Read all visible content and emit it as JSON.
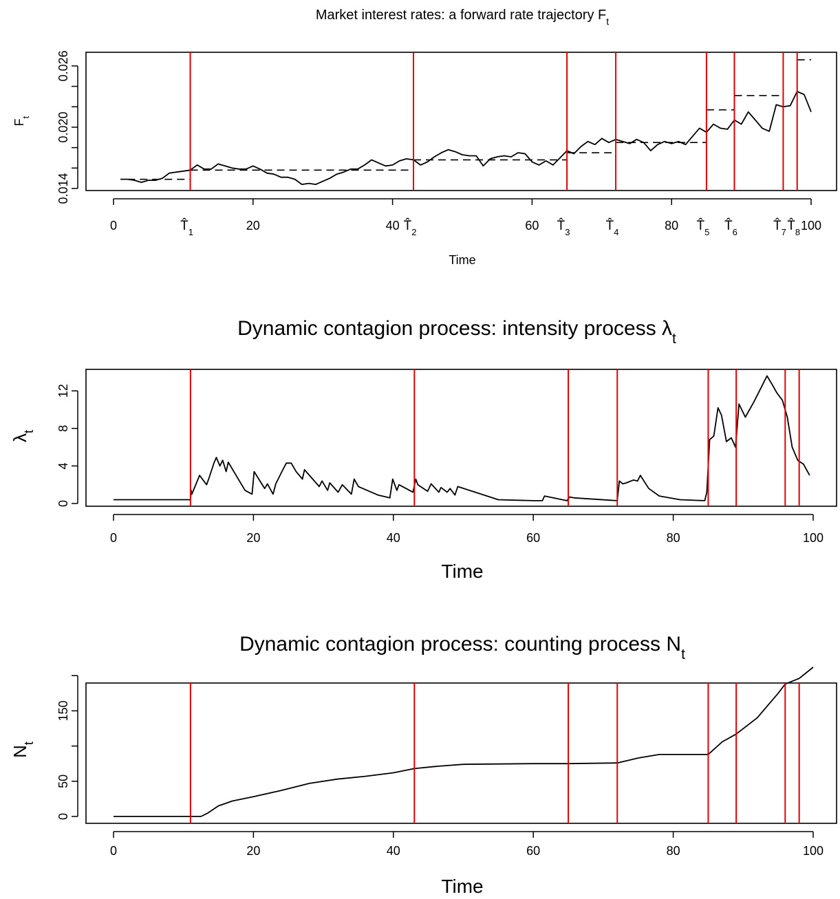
{
  "chart_data": [
    {
      "type": "line",
      "title": "Market interest rates: a forward rate trajectory F",
      "title_subscript": "t",
      "xlabel": "Time",
      "ylabel": "F",
      "ylabel_subscript": "t",
      "xlim": [
        0,
        100
      ],
      "ylim": [
        0.014,
        0.027
      ],
      "xticks": [
        0,
        20,
        40,
        60,
        80,
        100
      ],
      "xtick_labels": [
        "0",
        "20",
        "40",
        "60",
        "80",
        "100"
      ],
      "yticks": [
        0.014,
        0.016,
        0.018,
        0.02,
        0.022,
        0.024,
        0.026
      ],
      "ytick_labels": [
        "0.014",
        "",
        "",
        "0.020",
        "",
        "",
        "0.026"
      ],
      "changepoints": [
        11,
        43,
        65,
        72,
        85,
        89,
        96,
        98
      ],
      "changepoint_labels": [
        "T̂",
        "T̂",
        "T̂",
        "T̂",
        "T̂",
        "T̂",
        "T̂",
        "T̂"
      ],
      "changepoint_subscripts": [
        "1",
        "2",
        "3",
        "4",
        "5",
        "6",
        "7",
        "8"
      ],
      "series": [
        {
          "style": "solid",
          "x": [
            1,
            2,
            3,
            4,
            5,
            6,
            7,
            8,
            9,
            10,
            11,
            12,
            13,
            14,
            15,
            16,
            17,
            18,
            19,
            20,
            21,
            22,
            23,
            24,
            25,
            26,
            27,
            28,
            29,
            30,
            31,
            32,
            33,
            34,
            35,
            36,
            37,
            38,
            39,
            40,
            41,
            42,
            43,
            44,
            45,
            46,
            47,
            48,
            49,
            50,
            51,
            52,
            53,
            54,
            55,
            56,
            57,
            58,
            59,
            60,
            61,
            62,
            63,
            64,
            65,
            66,
            67,
            68,
            69,
            70,
            71,
            72,
            73,
            74,
            75,
            76,
            77,
            78,
            79,
            80,
            81,
            82,
            83,
            84,
            85,
            86,
            87,
            88,
            89,
            90,
            91,
            92,
            93,
            94,
            95,
            96,
            97,
            98,
            99,
            100
          ],
          "y": [
            0.0149,
            0.0149,
            0.0148,
            0.0146,
            0.0148,
            0.0148,
            0.015,
            0.0155,
            0.0156,
            0.0157,
            0.0158,
            0.0163,
            0.0159,
            0.0159,
            0.0164,
            0.0162,
            0.016,
            0.0159,
            0.0159,
            0.0162,
            0.0159,
            0.0155,
            0.0154,
            0.0151,
            0.0151,
            0.0149,
            0.0144,
            0.0145,
            0.0144,
            0.0147,
            0.015,
            0.0154,
            0.0156,
            0.0159,
            0.0159,
            0.0163,
            0.0168,
            0.0165,
            0.0162,
            0.0163,
            0.0167,
            0.0169,
            0.0168,
            0.0163,
            0.0166,
            0.0171,
            0.0175,
            0.0178,
            0.0176,
            0.0173,
            0.0172,
            0.0172,
            0.0162,
            0.0169,
            0.0171,
            0.0172,
            0.0171,
            0.0175,
            0.0174,
            0.0166,
            0.0163,
            0.0167,
            0.0163,
            0.017,
            0.0177,
            0.0174,
            0.0181,
            0.0186,
            0.0183,
            0.0189,
            0.0185,
            0.0188,
            0.0186,
            0.0184,
            0.0188,
            0.0185,
            0.0177,
            0.0183,
            0.0186,
            0.0184,
            0.0186,
            0.0183,
            0.0191,
            0.0199,
            0.0195,
            0.0203,
            0.0199,
            0.0198,
            0.0207,
            0.0203,
            0.0215,
            0.0207,
            0.0199,
            0.0196,
            0.0222,
            0.022,
            0.0221,
            0.0235,
            0.0232,
            0.0215
          ]
        },
        {
          "style": "dashed",
          "segments": [
            {
              "x": [
                2,
                11
              ],
              "y": 0.0149
            },
            {
              "x": [
                11,
                43
              ],
              "y": 0.0158
            },
            {
              "x": [
                43,
                65
              ],
              "y": 0.0168
            },
            {
              "x": [
                65,
                71.5
              ],
              "y": 0.0175
            },
            {
              "x": [
                72,
                85
              ],
              "y": 0.0185
            },
            {
              "x": [
                85,
                89
              ],
              "y": 0.0217
            },
            {
              "x": [
                89,
                96
              ],
              "y": 0.0231
            },
            {
              "x": [
                98,
                100
              ],
              "y": 0.0266
            }
          ]
        }
      ]
    },
    {
      "type": "line",
      "title": "Dynamic contagion process: intensity process λ",
      "title_subscript": "t",
      "xlabel": "Time",
      "ylabel": "λ",
      "ylabel_subscript": "t",
      "xlim": [
        0,
        100
      ],
      "ylim": [
        0,
        14
      ],
      "xticks": [
        0,
        20,
        40,
        60,
        80,
        100
      ],
      "xtick_labels": [
        "0",
        "20",
        "40",
        "60",
        "80",
        "100"
      ],
      "yticks": [
        0,
        4,
        8,
        12
      ],
      "ytick_labels": [
        "0",
        "4",
        "8",
        "12"
      ],
      "changepoints": [
        11,
        43,
        65,
        72,
        85,
        89,
        96,
        98
      ],
      "series": [
        {
          "style": "solid",
          "x": [
            0,
            11,
            11.1,
            11.2,
            12.3,
            12.5,
            13.3,
            13.6,
            14.4,
            14.7,
            15.2,
            15.6,
            16.1,
            16.4,
            18.8,
            19.8,
            20.1,
            21.6,
            22,
            22.8,
            23.2,
            24.2,
            24.7,
            25.4,
            26.1,
            27,
            27.3,
            29.4,
            29.8,
            30.6,
            30.9,
            32.1,
            32.7,
            34,
            34.4,
            35,
            37.8,
            39.5,
            39.9,
            40.5,
            40.8,
            42.8,
            43.2,
            43.5,
            44.9,
            45.4,
            46.5,
            46.8,
            47.7,
            48.1,
            48.8,
            49.2,
            55,
            60,
            61.3,
            61.6,
            64.8,
            65.2,
            65.8,
            72,
            72.3,
            72.8,
            73.3,
            74.3,
            74.9,
            75.3,
            76.5,
            78,
            81,
            84.5,
            84.8,
            85.2,
            85.8,
            86.4,
            86.9,
            87.6,
            88.3,
            88.9,
            89.4,
            90.3,
            91.5,
            92.6,
            93.4,
            94.2,
            94.8,
            95.6,
            96.3,
            97,
            97.8,
            98.6,
            99.5
          ],
          "y": [
            0.4,
            0.4,
            1.4,
            1.0,
            3.0,
            2.8,
            2.0,
            2.6,
            4.4,
            4.9,
            4.0,
            4.6,
            3.4,
            4.4,
            1.4,
            1.0,
            3.4,
            1.6,
            2.1,
            1.0,
            2.1,
            3.6,
            4.3,
            4.3,
            3.4,
            2.6,
            3.6,
            1.8,
            2.4,
            1.4,
            2.2,
            1.2,
            2.0,
            1.0,
            2.6,
            1.8,
            0.9,
            0.6,
            2.6,
            1.4,
            2.0,
            1.2,
            2.6,
            2.0,
            1.3,
            2.1,
            1.2,
            1.7,
            1.2,
            1.6,
            0.9,
            1.8,
            0.4,
            0.3,
            0.3,
            0.8,
            0.3,
            0.7,
            0.6,
            0.3,
            2.4,
            2.1,
            2.2,
            2.5,
            2.4,
            3.0,
            1.6,
            0.8,
            0.4,
            0.3,
            1.2,
            6.8,
            7.2,
            10.2,
            9.4,
            6.6,
            7.0,
            6.0,
            10.6,
            9.2,
            10.8,
            12.4,
            13.6,
            12.6,
            11.8,
            11.0,
            9.2,
            6.0,
            4.6,
            4.2,
            3.0
          ]
        }
      ]
    },
    {
      "type": "line",
      "title": "Dynamic contagion process: counting process N",
      "title_subscript": "t",
      "xlabel": "Time",
      "ylabel": "N",
      "ylabel_subscript": "t",
      "xlim": [
        0,
        100
      ],
      "ylim": [
        0,
        210
      ],
      "xticks": [
        0,
        20,
        40,
        60,
        80,
        100
      ],
      "xtick_labels": [
        "0",
        "20",
        "40",
        "60",
        "80",
        "100"
      ],
      "yticks": [
        0,
        50,
        100,
        150,
        200
      ],
      "ytick_labels": [
        "0",
        "50",
        "",
        "150",
        ""
      ],
      "changepoints": [
        11,
        43,
        65,
        72,
        85,
        89,
        96,
        98
      ],
      "series": [
        {
          "style": "solid",
          "x": [
            0,
            12.5,
            13.5,
            15,
            17,
            20,
            24,
            28,
            32,
            36,
            40,
            43,
            46,
            50,
            60,
            65,
            72,
            75,
            78,
            85,
            87,
            89,
            92,
            95,
            96,
            98,
            100
          ],
          "y": [
            0,
            0,
            5,
            15,
            22,
            28,
            37,
            47,
            53,
            57,
            62,
            68,
            71,
            74,
            75,
            75,
            76,
            83,
            88,
            88,
            106,
            117,
            140,
            175,
            188,
            196,
            212
          ]
        }
      ]
    }
  ]
}
